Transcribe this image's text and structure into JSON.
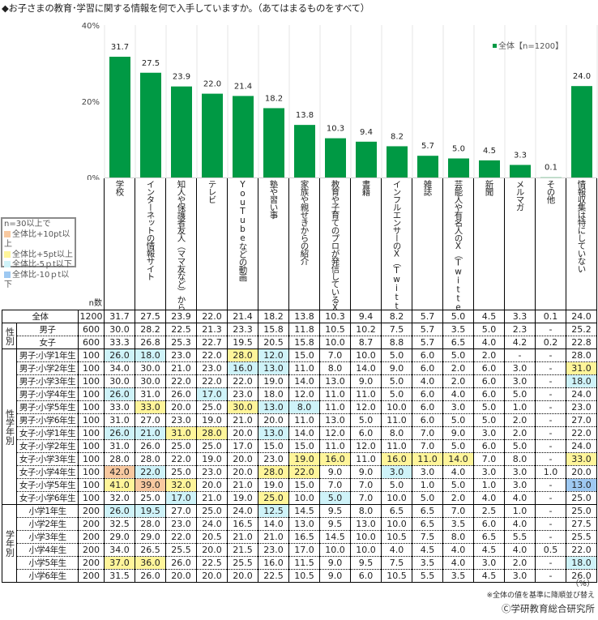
{
  "title": "◆お子さまの教育･学習に関する情報を何で入手していますか。（あてはまるものをすべて）",
  "chart_data": {
    "type": "bar",
    "title": "◆お子さまの教育･学習に関する情報を何で入手していますか。（あてはまるものをすべて）",
    "categories": [
      "学校",
      "インターネットの情報サイト",
      "知人や保護者友人（ママ友など）からの口コミ",
      "テレビ",
      "YouTubeなどの動画",
      "塾や習い事",
      "家族や親せきからの紹介",
      "教育や子育てのプロが発信しているX（Twitter）やインスタグラムなどのSNS",
      "書籍",
      "インフルエンサーのX（Twitter）やインスタグラムなどのSNS",
      "雑誌",
      "芸能人や有名人のX（Twitter）やインスタグラムなどのSNS",
      "新聞",
      "メルマガ",
      "その他",
      "情報収集は特にしていない"
    ],
    "series": [
      {
        "name": "全体【n=1200】",
        "values": [
          31.7,
          27.5,
          23.9,
          22.0,
          21.4,
          18.2,
          13.8,
          10.3,
          9.4,
          8.2,
          5.7,
          5.0,
          4.5,
          3.3,
          0.1,
          24.0
        ]
      }
    ],
    "value_labels": [
      "31.7",
      "27.5",
      "23.9",
      "22.0",
      "21.4",
      "18.2",
      "13.8",
      "10.3",
      "9.4",
      "8.2",
      "5.7",
      "5.0",
      "4.5",
      "3.3",
      "0.1",
      "24.0"
    ],
    "xlabel": "",
    "ylabel": "",
    "ylim": [
      0,
      40
    ],
    "yticks": [
      0,
      20,
      40
    ],
    "ytick_labels": [
      "0%",
      "20%",
      "40%"
    ],
    "legend": {
      "label": "全体【n=1200】",
      "placement": "top-right"
    },
    "grid": "vertical separators",
    "bar_color": "#009944"
  },
  "table": {
    "n_header": "n数",
    "unit": "（%）",
    "highlight_legend": {
      "title": "n=30以上で",
      "items": [
        {
          "label": "全体比+10pt以上",
          "color": "#f8c9a0"
        },
        {
          "label": "全体比+5pt以上",
          "color": "#fff59a"
        },
        {
          "label": "全体比-5ｐt以下",
          "color": "#cff3f9"
        },
        {
          "label": "全体比-10ｐt以下",
          "color": "#9ec9f2"
        }
      ]
    },
    "sections": [
      {
        "group": "",
        "rows": [
          {
            "label": "全体",
            "n": "1200",
            "values": [
              "31.7",
              "27.5",
              "23.9",
              "22.0",
              "21.4",
              "18.2",
              "13.8",
              "10.3",
              "9.4",
              "8.2",
              "5.7",
              "5.0",
              "4.5",
              "3.3",
              "0.1",
              "24.0"
            ],
            "hl": [
              "",
              "",
              "",
              "",
              "",
              "",
              "",
              "",
              "",
              "",
              "",
              "",
              "",
              "",
              "",
              ""
            ]
          }
        ]
      },
      {
        "group": "性別",
        "rows": [
          {
            "label": "男子",
            "n": "600",
            "values": [
              "30.0",
              "28.2",
              "22.5",
              "21.3",
              "23.3",
              "15.8",
              "11.8",
              "10.5",
              "10.2",
              "7.5",
              "5.7",
              "3.5",
              "5.0",
              "2.3",
              "-",
              "25.2"
            ],
            "hl": [
              "",
              "",
              "",
              "",
              "",
              "",
              "",
              "",
              "",
              "",
              "",
              "",
              "",
              "",
              "",
              ""
            ]
          },
          {
            "label": "女子",
            "n": "600",
            "values": [
              "33.3",
              "26.8",
              "25.3",
              "22.7",
              "19.5",
              "20.5",
              "15.8",
              "10.0",
              "8.7",
              "8.8",
              "5.7",
              "6.5",
              "4.0",
              "4.2",
              "0.2",
              "22.8"
            ],
            "hl": [
              "",
              "",
              "",
              "",
              "",
              "",
              "",
              "",
              "",
              "",
              "",
              "",
              "",
              "",
              "",
              ""
            ]
          }
        ]
      },
      {
        "group": "性学年別",
        "rows": [
          {
            "label": "男子:小学1年生",
            "n": "100",
            "values": [
              "26.0",
              "18.0",
              "23.0",
              "22.0",
              "28.0",
              "12.0",
              "15.0",
              "7.0",
              "10.0",
              "5.0",
              "6.0",
              "5.0",
              "2.0",
              "-",
              "-",
              "28.0"
            ],
            "hl": [
              "c",
              "c",
              "",
              "",
              "y",
              "c",
              "",
              "",
              "",
              "",
              "",
              "",
              "",
              "",
              "",
              ""
            ]
          },
          {
            "label": "男子:小学2年生",
            "n": "100",
            "values": [
              "34.0",
              "30.0",
              "21.0",
              "23.0",
              "16.0",
              "13.0",
              "11.0",
              "8.0",
              "14.0",
              "9.0",
              "6.0",
              "2.0",
              "6.0",
              "3.0",
              "-",
              "31.0"
            ],
            "hl": [
              "",
              "",
              "",
              "",
              "c",
              "c",
              "",
              "",
              "",
              "",
              "",
              "",
              "",
              "",
              "",
              "y"
            ]
          },
          {
            "label": "男子:小学3年生",
            "n": "100",
            "values": [
              "30.0",
              "30.0",
              "22.0",
              "22.0",
              "22.0",
              "19.0",
              "14.0",
              "13.0",
              "9.0",
              "5.0",
              "4.0",
              "2.0",
              "6.0",
              "3.0",
              "-",
              "18.0"
            ],
            "hl": [
              "",
              "",
              "",
              "",
              "",
              "",
              "",
              "",
              "",
              "",
              "",
              "",
              "",
              "",
              "",
              "c"
            ]
          },
          {
            "label": "男子:小学4年生",
            "n": "100",
            "values": [
              "26.0",
              "31.0",
              "26.0",
              "17.0",
              "23.0",
              "18.0",
              "12.0",
              "11.0",
              "11.0",
              "5.0",
              "6.0",
              "4.0",
              "6.0",
              "5.0",
              "-",
              "24.0"
            ],
            "hl": [
              "c",
              "",
              "",
              "c",
              "",
              "",
              "",
              "",
              "",
              "",
              "",
              "",
              "",
              "",
              "",
              ""
            ]
          },
          {
            "label": "男子:小学5年生",
            "n": "100",
            "values": [
              "33.0",
              "33.0",
              "20.0",
              "25.0",
              "30.0",
              "13.0",
              "8.0",
              "11.0",
              "12.0",
              "10.0",
              "6.0",
              "3.0",
              "5.0",
              "1.0",
              "-",
              "23.0"
            ],
            "hl": [
              "",
              "y",
              "",
              "",
              "y",
              "c",
              "c",
              "",
              "",
              "",
              "",
              "",
              "",
              "",
              "",
              ""
            ]
          },
          {
            "label": "男子:小学6年生",
            "n": "100",
            "values": [
              "31.0",
              "27.0",
              "23.0",
              "19.0",
              "21.0",
              "20.0",
              "11.0",
              "13.0",
              "5.0",
              "11.0",
              "6.0",
              "5.0",
              "5.0",
              "2.0",
              "-",
              "27.0"
            ],
            "hl": [
              "",
              "",
              "",
              "",
              "",
              "",
              "",
              "",
              "",
              "",
              "",
              "",
              "",
              "",
              "",
              ""
            ]
          },
          {
            "label": "女子:小学1年生",
            "n": "100",
            "values": [
              "26.0",
              "21.0",
              "31.0",
              "28.0",
              "20.0",
              "13.0",
              "14.0",
              "12.0",
              "6.0",
              "8.0",
              "7.0",
              "9.0",
              "3.0",
              "2.0",
              "-",
              "22.0"
            ],
            "hl": [
              "c",
              "c",
              "y",
              "y",
              "",
              "c",
              "",
              "",
              "",
              "",
              "",
              "",
              "",
              "",
              "",
              ""
            ]
          },
          {
            "label": "女子:小学2年生",
            "n": "100",
            "values": [
              "31.0",
              "26.0",
              "25.0",
              "25.0",
              "17.0",
              "15.0",
              "15.0",
              "11.0",
              "12.0",
              "11.0",
              "7.0",
              "5.0",
              "6.0",
              "5.0",
              "-",
              "24.0"
            ],
            "hl": [
              "",
              "",
              "",
              "",
              "",
              "",
              "",
              "",
              "",
              "",
              "",
              "",
              "",
              "",
              "",
              ""
            ]
          },
          {
            "label": "女子:小学3年生",
            "n": "100",
            "values": [
              "28.0",
              "28.0",
              "22.0",
              "19.0",
              "20.0",
              "23.0",
              "19.0",
              "16.0",
              "11.0",
              "16.0",
              "11.0",
              "14.0",
              "7.0",
              "8.0",
              "-",
              "33.0"
            ],
            "hl": [
              "",
              "",
              "",
              "",
              "",
              "",
              "y",
              "y",
              "",
              "y",
              "y",
              "y",
              "",
              "",
              "",
              "y"
            ]
          },
          {
            "label": "女子:小学4年生",
            "n": "100",
            "values": [
              "42.0",
              "22.0",
              "25.0",
              "23.0",
              "20.0",
              "28.0",
              "22.0",
              "9.0",
              "9.0",
              "3.0",
              "3.0",
              "4.0",
              "3.0",
              "3.0",
              "1.0",
              "20.0"
            ],
            "hl": [
              "o",
              "c",
              "",
              "",
              "",
              "y",
              "y",
              "",
              "",
              "c",
              "",
              "",
              "",
              "",
              "",
              ""
            ]
          },
          {
            "label": "女子:小学5年生",
            "n": "100",
            "values": [
              "41.0",
              "39.0",
              "32.0",
              "20.0",
              "21.0",
              "19.0",
              "15.0",
              "7.0",
              "7.0",
              "5.0",
              "1.0",
              "5.0",
              "1.0",
              "3.0",
              "-",
              "13.0"
            ],
            "hl": [
              "y",
              "o",
              "y",
              "",
              "",
              "",
              "",
              "",
              "",
              "",
              "",
              "",
              "",
              "",
              "",
              "b"
            ]
          },
          {
            "label": "女子:小学6年生",
            "n": "100",
            "values": [
              "32.0",
              "25.0",
              "17.0",
              "21.0",
              "19.0",
              "25.0",
              "10.0",
              "5.0",
              "7.0",
              "10.0",
              "5.0",
              "2.0",
              "4.0",
              "4.0",
              "-",
              "25.0"
            ],
            "hl": [
              "",
              "",
              "c",
              "",
              "",
              "y",
              "",
              "c",
              "",
              "",
              "",
              "",
              "",
              "",
              "",
              ""
            ]
          }
        ]
      },
      {
        "group": "学年別",
        "rows": [
          {
            "label": "小学1年生",
            "n": "200",
            "values": [
              "26.0",
              "19.5",
              "27.0",
              "25.0",
              "24.0",
              "12.5",
              "14.5",
              "9.5",
              "8.0",
              "6.5",
              "6.5",
              "7.0",
              "2.5",
              "1.0",
              "-",
              "25.0"
            ],
            "hl": [
              "c",
              "c",
              "",
              "",
              "",
              "c",
              "",
              "",
              "",
              "",
              "",
              "",
              "",
              "",
              "",
              ""
            ]
          },
          {
            "label": "小学2年生",
            "n": "200",
            "values": [
              "32.5",
              "28.0",
              "23.0",
              "24.0",
              "16.5",
              "14.0",
              "13.0",
              "9.5",
              "13.0",
              "10.0",
              "6.5",
              "3.5",
              "6.0",
              "4.0",
              "-",
              "27.5"
            ],
            "hl": [
              "",
              "",
              "",
              "",
              "",
              "",
              "",
              "",
              "",
              "",
              "",
              "",
              "",
              "",
              "",
              ""
            ]
          },
          {
            "label": "小学3年生",
            "n": "200",
            "values": [
              "29.0",
              "29.0",
              "22.0",
              "20.5",
              "21.0",
              "21.0",
              "16.5",
              "14.5",
              "10.0",
              "10.5",
              "7.5",
              "8.0",
              "6.5",
              "5.5",
              "-",
              "25.5"
            ],
            "hl": [
              "",
              "",
              "",
              "",
              "",
              "",
              "",
              "",
              "",
              "",
              "",
              "",
              "",
              "",
              "",
              ""
            ]
          },
          {
            "label": "小学4年生",
            "n": "200",
            "values": [
              "34.0",
              "26.5",
              "25.5",
              "20.0",
              "21.5",
              "23.0",
              "17.0",
              "10.0",
              "10.0",
              "4.0",
              "4.5",
              "4.0",
              "4.5",
              "4.0",
              "0.5",
              "22.0"
            ],
            "hl": [
              "",
              "",
              "",
              "",
              "",
              "",
              "",
              "",
              "",
              "",
              "",
              "",
              "",
              "",
              "",
              ""
            ]
          },
          {
            "label": "小学5年生",
            "n": "200",
            "values": [
              "37.0",
              "36.0",
              "26.0",
              "22.5",
              "25.5",
              "16.0",
              "11.5",
              "9.0",
              "9.5",
              "7.5",
              "3.5",
              "4.0",
              "3.0",
              "2.0",
              "-",
              "18.0"
            ],
            "hl": [
              "y",
              "y",
              "",
              "",
              "",
              "",
              "",
              "",
              "",
              "",
              "",
              "",
              "",
              "",
              "",
              "c"
            ]
          },
          {
            "label": "小学6年生",
            "n": "200",
            "values": [
              "31.5",
              "26.0",
              "20.0",
              "20.0",
              "20.0",
              "22.5",
              "10.5",
              "9.0",
              "6.0",
              "10.5",
              "5.5",
              "3.5",
              "4.5",
              "3.0",
              "-",
              "26.0"
            ],
            "hl": [
              "",
              "",
              "",
              "",
              "",
              "",
              "",
              "",
              "",
              "",
              "",
              "",
              "",
              "",
              "",
              ""
            ]
          }
        ]
      }
    ]
  },
  "footer": {
    "unit": "（%）",
    "note": "※全体の値を基準に降順並び替え",
    "copyright": "Ⓒ学研教育総合研究所"
  }
}
